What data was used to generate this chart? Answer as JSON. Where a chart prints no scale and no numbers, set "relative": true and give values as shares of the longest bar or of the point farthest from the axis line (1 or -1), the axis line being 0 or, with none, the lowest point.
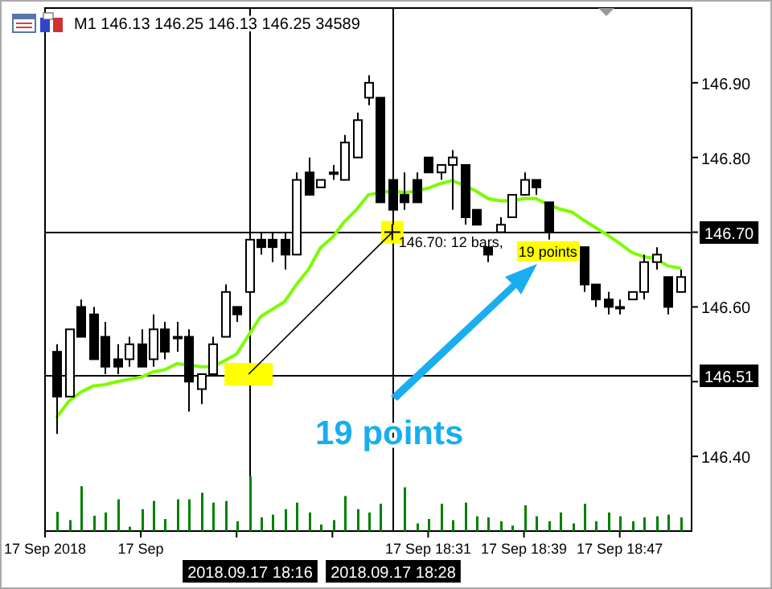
{
  "chart_data": [
    {
      "type": "candlestick",
      "title": "M1  146.13 146.25 146.13 146.25  34589",
      "color": "#000000",
      "x": [
        "2018-09-17T18:00",
        "2018-09-17T18:01",
        "2018-09-17T18:02",
        "2018-09-17T18:03",
        "2018-09-17T18:04",
        "2018-09-17T18:05",
        "2018-09-17T18:06",
        "2018-09-17T18:07",
        "2018-09-17T18:08",
        "2018-09-17T18:09",
        "2018-09-17T18:10",
        "2018-09-17T18:11",
        "2018-09-17T18:12",
        "2018-09-17T18:13",
        "2018-09-17T18:14",
        "2018-09-17T18:15",
        "2018-09-17T18:16",
        "2018-09-17T18:17",
        "2018-09-17T18:18",
        "2018-09-17T18:19",
        "2018-09-17T18:20",
        "2018-09-17T18:21",
        "2018-09-17T18:22",
        "2018-09-17T18:23",
        "2018-09-17T18:24",
        "2018-09-17T18:25",
        "2018-09-17T18:26",
        "2018-09-17T18:27",
        "2018-09-17T18:28",
        "2018-09-17T18:29",
        "2018-09-17T18:30",
        "2018-09-17T18:31",
        "2018-09-17T18:32",
        "2018-09-17T18:33",
        "2018-09-17T18:34",
        "2018-09-17T18:35",
        "2018-09-17T18:36",
        "2018-09-17T18:37",
        "2018-09-17T18:38",
        "2018-09-17T18:39",
        "2018-09-17T18:40",
        "2018-09-17T18:41",
        "2018-09-17T18:42",
        "2018-09-17T18:43",
        "2018-09-17T18:44",
        "2018-09-17T18:45",
        "2018-09-17T18:46",
        "2018-09-17T18:47",
        "2018-09-17T18:48",
        "2018-09-17T18:49",
        "2018-09-17T18:50",
        "2018-09-17T18:51",
        "2018-09-17T18:52"
      ],
      "ohlc": [
        [
          146.54,
          146.55,
          146.43,
          146.48
        ],
        [
          146.48,
          146.57,
          146.48,
          146.57
        ],
        [
          146.6,
          146.61,
          146.56,
          146.56
        ],
        [
          146.59,
          146.6,
          146.53,
          146.53
        ],
        [
          146.56,
          146.58,
          146.51,
          146.52
        ],
        [
          146.53,
          146.55,
          146.51,
          146.52
        ],
        [
          146.53,
          146.56,
          146.52,
          146.55
        ],
        [
          146.55,
          146.57,
          146.52,
          146.52
        ],
        [
          146.53,
          146.59,
          146.52,
          146.57
        ],
        [
          146.57,
          146.58,
          146.53,
          146.54
        ],
        [
          146.56,
          146.58,
          146.54,
          146.56
        ],
        [
          146.56,
          146.57,
          146.46,
          146.5
        ],
        [
          146.49,
          146.51,
          146.47,
          146.51
        ],
        [
          146.51,
          146.56,
          146.51,
          146.55
        ],
        [
          146.56,
          146.63,
          146.56,
          146.62
        ],
        [
          146.6,
          146.6,
          146.58,
          146.59
        ],
        [
          146.62,
          146.7,
          146.61,
          146.69
        ],
        [
          146.69,
          146.7,
          146.67,
          146.68
        ],
        [
          146.69,
          146.7,
          146.66,
          146.68
        ],
        [
          146.69,
          146.7,
          146.65,
          146.67
        ],
        [
          146.67,
          146.78,
          146.67,
          146.77
        ],
        [
          146.78,
          146.8,
          146.75,
          146.75
        ],
        [
          146.76,
          146.77,
          146.76,
          146.77
        ],
        [
          146.78,
          146.79,
          146.77,
          146.78
        ],
        [
          146.77,
          146.83,
          146.77,
          146.82
        ],
        [
          146.8,
          146.86,
          146.8,
          146.85
        ],
        [
          146.88,
          146.91,
          146.87,
          146.9
        ],
        [
          146.88,
          146.88,
          146.74,
          146.74
        ],
        [
          146.77,
          146.78,
          146.71,
          146.73
        ],
        [
          146.75,
          146.78,
          146.73,
          146.74
        ],
        [
          146.77,
          146.78,
          146.74,
          146.74
        ],
        [
          146.8,
          146.8,
          146.78,
          146.78
        ],
        [
          146.78,
          146.79,
          146.77,
          146.79
        ],
        [
          146.79,
          146.81,
          146.73,
          146.8
        ],
        [
          146.79,
          146.79,
          146.71,
          146.72
        ],
        [
          146.73,
          146.73,
          146.71,
          146.71
        ],
        [
          146.68,
          146.68,
          146.66,
          146.67
        ],
        [
          146.7,
          146.72,
          146.7,
          146.71
        ],
        [
          146.72,
          146.75,
          146.72,
          146.75
        ],
        [
          146.75,
          146.78,
          146.75,
          146.77
        ],
        [
          146.77,
          146.77,
          146.75,
          146.76
        ],
        [
          146.74,
          146.74,
          146.69,
          146.7
        ],
        null,
        null,
        [
          146.68,
          146.68,
          146.62,
          146.63
        ],
        [
          146.63,
          146.63,
          146.6,
          146.61
        ],
        [
          146.61,
          146.62,
          146.59,
          146.6
        ],
        [
          146.6,
          146.61,
          146.59,
          146.6
        ],
        [
          146.61,
          146.62,
          146.61,
          146.62
        ],
        [
          146.62,
          146.67,
          146.61,
          146.66
        ],
        [
          146.66,
          146.68,
          146.65,
          146.67
        ],
        [
          146.64,
          146.64,
          146.59,
          146.6
        ],
        [
          146.62,
          146.65,
          146.62,
          146.64
        ]
      ],
      "series": [
        {
          "type": "line",
          "color": "#7cfc00",
          "values": [
            146.453,
            146.474,
            146.486,
            146.494,
            146.496,
            146.5,
            146.503,
            146.506,
            146.513,
            146.516,
            146.524,
            146.522,
            146.52,
            146.52,
            146.528,
            146.537,
            146.562,
            146.587,
            146.597,
            146.607,
            146.63,
            146.65,
            146.679,
            146.693,
            146.714,
            146.73,
            146.75,
            146.753,
            146.755,
            146.753,
            146.755,
            146.759,
            146.765,
            146.769,
            146.763,
            146.755,
            146.745,
            146.742,
            146.742,
            146.745,
            146.745,
            146.737,
            146.731,
            146.727,
            146.716,
            146.706,
            146.696,
            146.685,
            146.673,
            146.667,
            146.665,
            146.655,
            146.652
          ]
        }
      ],
      "xlim": [
        "2018-09-17T17:59",
        "2018-09-17T18:53"
      ],
      "xticks": [
        {
          "value": "2018-09-17T17:59",
          "label": "17 Sep 2018"
        },
        {
          "value": "2018-09-17T18:07",
          "label": "17 Sep"
        },
        {
          "value": "2018-09-17T18:15",
          "label": null
        },
        {
          "value": "2018-09-17T18:23",
          "label": null
        },
        {
          "value": "2018-09-17T18:31",
          "label": "17 Sep 18:31"
        },
        {
          "value": "2018-09-17T18:39",
          "label": "17 Sep 18:39"
        },
        {
          "value": "2018-09-17T18:47",
          "label": "17 Sep 18:47"
        }
      ],
      "ylim": [
        146.3,
        147.0
      ],
      "yticks": [
        {
          "value": 146.4,
          "label": "146.40"
        },
        {
          "value": 146.5,
          "label": null
        },
        {
          "value": 146.6,
          "label": "146.60"
        },
        {
          "value": 146.7,
          "label": null
        },
        {
          "value": 146.8,
          "label": "146.80"
        },
        {
          "value": 146.9,
          "label": "146.90"
        }
      ],
      "ref_lines": [
        {
          "axis": "y",
          "value": 146.7,
          "label": "146.70",
          "color": "#000000"
        },
        {
          "axis": "y",
          "value": 146.51,
          "label": "146.51",
          "color": "#000000"
        },
        {
          "axis": "x",
          "value": "2018-09-17T18:16",
          "label": "2018.09.17 18:16",
          "color": "#000000"
        },
        {
          "axis": "x",
          "value": "2018-09-17T18:28",
          "label": "2018.09.17 18:28",
          "color": "#000000"
        }
      ],
      "annotations": [
        {
          "text": "146.70: 12 bars,",
          "x": "2018-09-17T18:28",
          "y": 146.7
        },
        {
          "text": "19 points",
          "x": "2018-09-17T18:41",
          "y": 146.675
        },
        "19 points"
      ],
      "grid": false
    },
    {
      "type": "bar",
      "relative": true,
      "color": "#008000",
      "x": [
        "2018-09-17T18:00",
        "2018-09-17T18:01",
        "2018-09-17T18:02",
        "2018-09-17T18:03",
        "2018-09-17T18:04",
        "2018-09-17T18:05",
        "2018-09-17T18:06",
        "2018-09-17T18:07",
        "2018-09-17T18:08",
        "2018-09-17T18:09",
        "2018-09-17T18:10",
        "2018-09-17T18:11",
        "2018-09-17T18:12",
        "2018-09-17T18:13",
        "2018-09-17T18:14",
        "2018-09-17T18:15",
        "2018-09-17T18:16",
        "2018-09-17T18:17",
        "2018-09-17T18:18",
        "2018-09-17T18:19",
        "2018-09-17T18:20",
        "2018-09-17T18:21",
        "2018-09-17T18:22",
        "2018-09-17T18:23",
        "2018-09-17T18:24",
        "2018-09-17T18:25",
        "2018-09-17T18:26",
        "2018-09-17T18:27",
        "2018-09-17T18:28",
        "2018-09-17T18:29",
        "2018-09-17T18:30",
        "2018-09-17T18:31",
        "2018-09-17T18:32",
        "2018-09-17T18:33",
        "2018-09-17T18:34",
        "2018-09-17T18:35",
        "2018-09-17T18:36",
        "2018-09-17T18:37",
        "2018-09-17T18:38",
        "2018-09-17T18:39",
        "2018-09-17T18:40",
        "2018-09-17T18:41",
        "2018-09-17T18:42",
        "2018-09-17T18:43",
        "2018-09-17T18:44",
        "2018-09-17T18:45",
        "2018-09-17T18:46",
        "2018-09-17T18:47",
        "2018-09-17T18:48",
        "2018-09-17T18:49",
        "2018-09-17T18:50",
        "2018-09-17T18:51",
        "2018-09-17T18:52"
      ],
      "values": [
        0.35,
        0.2,
        0.82,
        0.28,
        0.34,
        0.58,
        0.08,
        0.4,
        0.55,
        0.22,
        0.58,
        0.58,
        0.7,
        0.52,
        0.55,
        0.18,
        1,
        0.25,
        0.3,
        0.4,
        0.52,
        0.34,
        0.12,
        0.2,
        0.64,
        0.4,
        0.34,
        0.5,
        null,
        0.8,
        0.14,
        0.22,
        0.5,
        0.2,
        0.52,
        0.27,
        0.25,
        0.18,
        0.1,
        0.47,
        0.27,
        0.18,
        0.34,
        0.14,
        0.5,
        0.18,
        0.34,
        0.27,
        0.18,
        0.25,
        0.27,
        0.3,
        0.25
      ],
      "xlim": [
        "2018-09-17T17:59",
        "2018-09-17T18:53"
      ]
    }
  ]
}
